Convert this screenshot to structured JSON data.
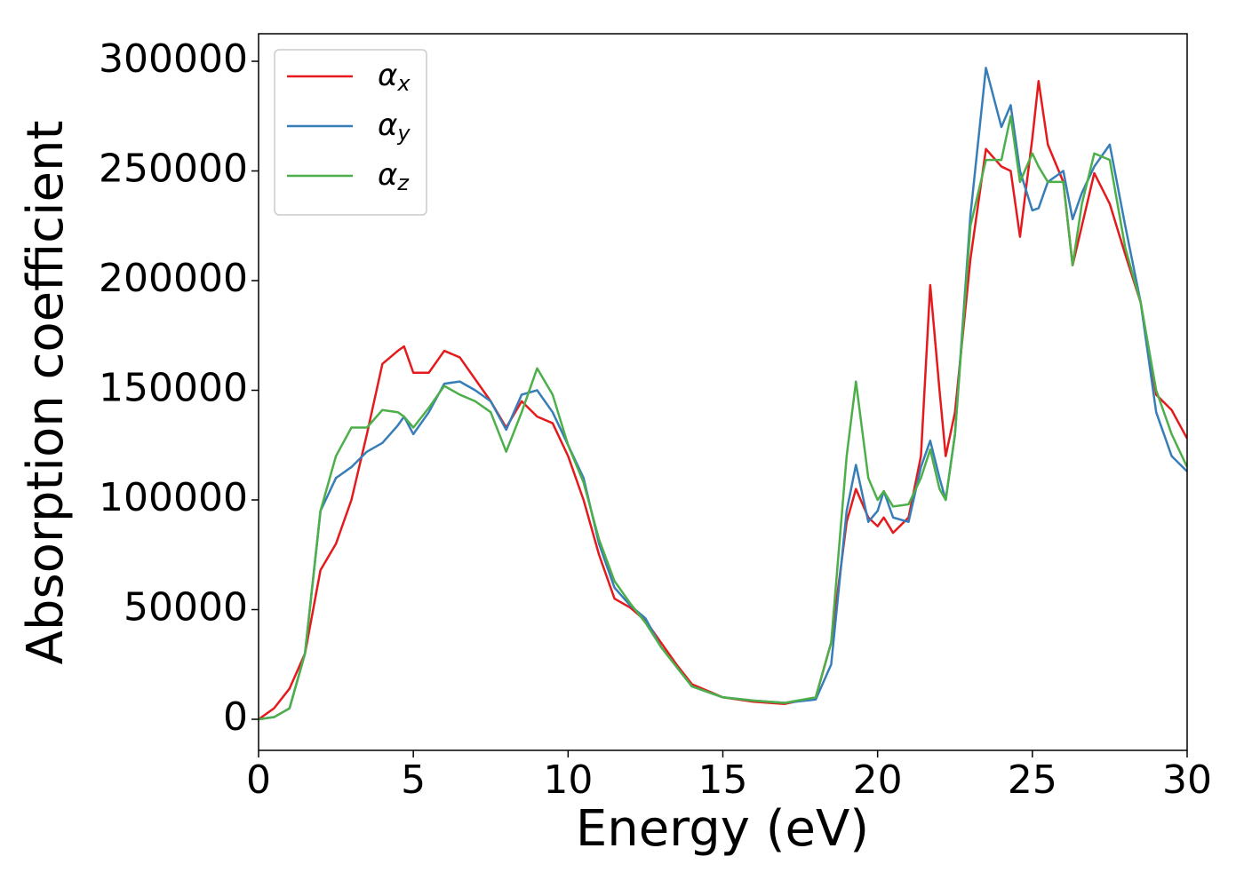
{
  "chart_data": {
    "type": "line",
    "x_label": "Energy (eV)",
    "y_label": "Absorption coefficient",
    "xlim": [
      0,
      30
    ],
    "ylim": [
      -14170,
      312550
    ],
    "xticks": [
      0,
      5,
      10,
      15,
      20,
      25,
      30
    ],
    "yticks": [
      0,
      50000,
      100000,
      150000,
      200000,
      250000,
      300000
    ],
    "legend": "upper-left",
    "x": [
      0,
      0.5,
      1,
      1.5,
      2,
      2.5,
      3,
      3.5,
      4,
      4.5,
      4.7,
      5,
      5.5,
      6,
      6.5,
      7,
      7.5,
      8,
      8.5,
      9,
      9.5,
      10,
      10.5,
      11,
      11.5,
      12,
      12.5,
      13,
      13.5,
      14,
      15,
      16,
      17,
      18,
      18.5,
      19,
      19.3,
      19.7,
      20,
      20.2,
      20.5,
      21,
      21.4,
      21.7,
      22,
      22.2,
      22.5,
      23,
      23.5,
      24,
      24.3,
      24.6,
      25,
      25.2,
      25.5,
      26,
      26.3,
      26.6,
      27,
      27.5,
      28,
      28.5,
      29,
      29.5,
      30
    ],
    "series": [
      {
        "name": "αx",
        "color": "#e41a1c",
        "values": [
          0,
          5000,
          14000,
          30000,
          68000,
          80000,
          100000,
          130000,
          162000,
          168000,
          170000,
          158000,
          158000,
          168000,
          165000,
          155000,
          145000,
          133000,
          145000,
          138000,
          135000,
          120000,
          100000,
          75000,
          55000,
          51000,
          45000,
          35000,
          25000,
          16000,
          10000,
          8000,
          7000,
          10000,
          35000,
          90000,
          105000,
          92000,
          88000,
          92000,
          85000,
          92000,
          120000,
          198000,
          150000,
          120000,
          140000,
          210000,
          260000,
          252000,
          250000,
          220000,
          265000,
          291000,
          262000,
          245000,
          207000,
          225000,
          249000,
          235000,
          212000,
          190000,
          148000,
          141000,
          128000
        ]
      },
      {
        "name": "αy",
        "color": "#377eb8",
        "values": [
          0,
          1000,
          5000,
          30000,
          95000,
          110000,
          115000,
          122000,
          126000,
          134000,
          138000,
          130000,
          140000,
          153000,
          154000,
          150000,
          145000,
          132000,
          148000,
          150000,
          140000,
          125000,
          110000,
          80000,
          60000,
          52000,
          46000,
          33000,
          24000,
          15000,
          10000,
          8500,
          7500,
          9000,
          25000,
          95000,
          116000,
          90000,
          95000,
          104000,
          92000,
          90000,
          115000,
          127000,
          110000,
          100000,
          130000,
          230000,
          297000,
          270000,
          280000,
          250000,
          232000,
          233000,
          245000,
          250000,
          228000,
          240000,
          252000,
          262000,
          225000,
          190000,
          140000,
          120000,
          113000
        ]
      },
      {
        "name": "αz",
        "color": "#4daf4a",
        "values": [
          0,
          1000,
          5000,
          30000,
          95000,
          120000,
          133000,
          133000,
          141000,
          140000,
          138000,
          133000,
          142000,
          152000,
          148000,
          145000,
          140000,
          122000,
          140000,
          160000,
          148000,
          125000,
          108000,
          82000,
          63000,
          53000,
          44000,
          33000,
          24000,
          15000,
          10000,
          8500,
          7500,
          10000,
          35000,
          120000,
          154000,
          110000,
          100000,
          104000,
          97000,
          98000,
          110000,
          123000,
          105000,
          100000,
          130000,
          225000,
          255000,
          255000,
          275000,
          245000,
          258000,
          252000,
          245000,
          245000,
          207000,
          235000,
          258000,
          255000,
          215000,
          190000,
          150000,
          130000,
          115000
        ]
      }
    ]
  }
}
